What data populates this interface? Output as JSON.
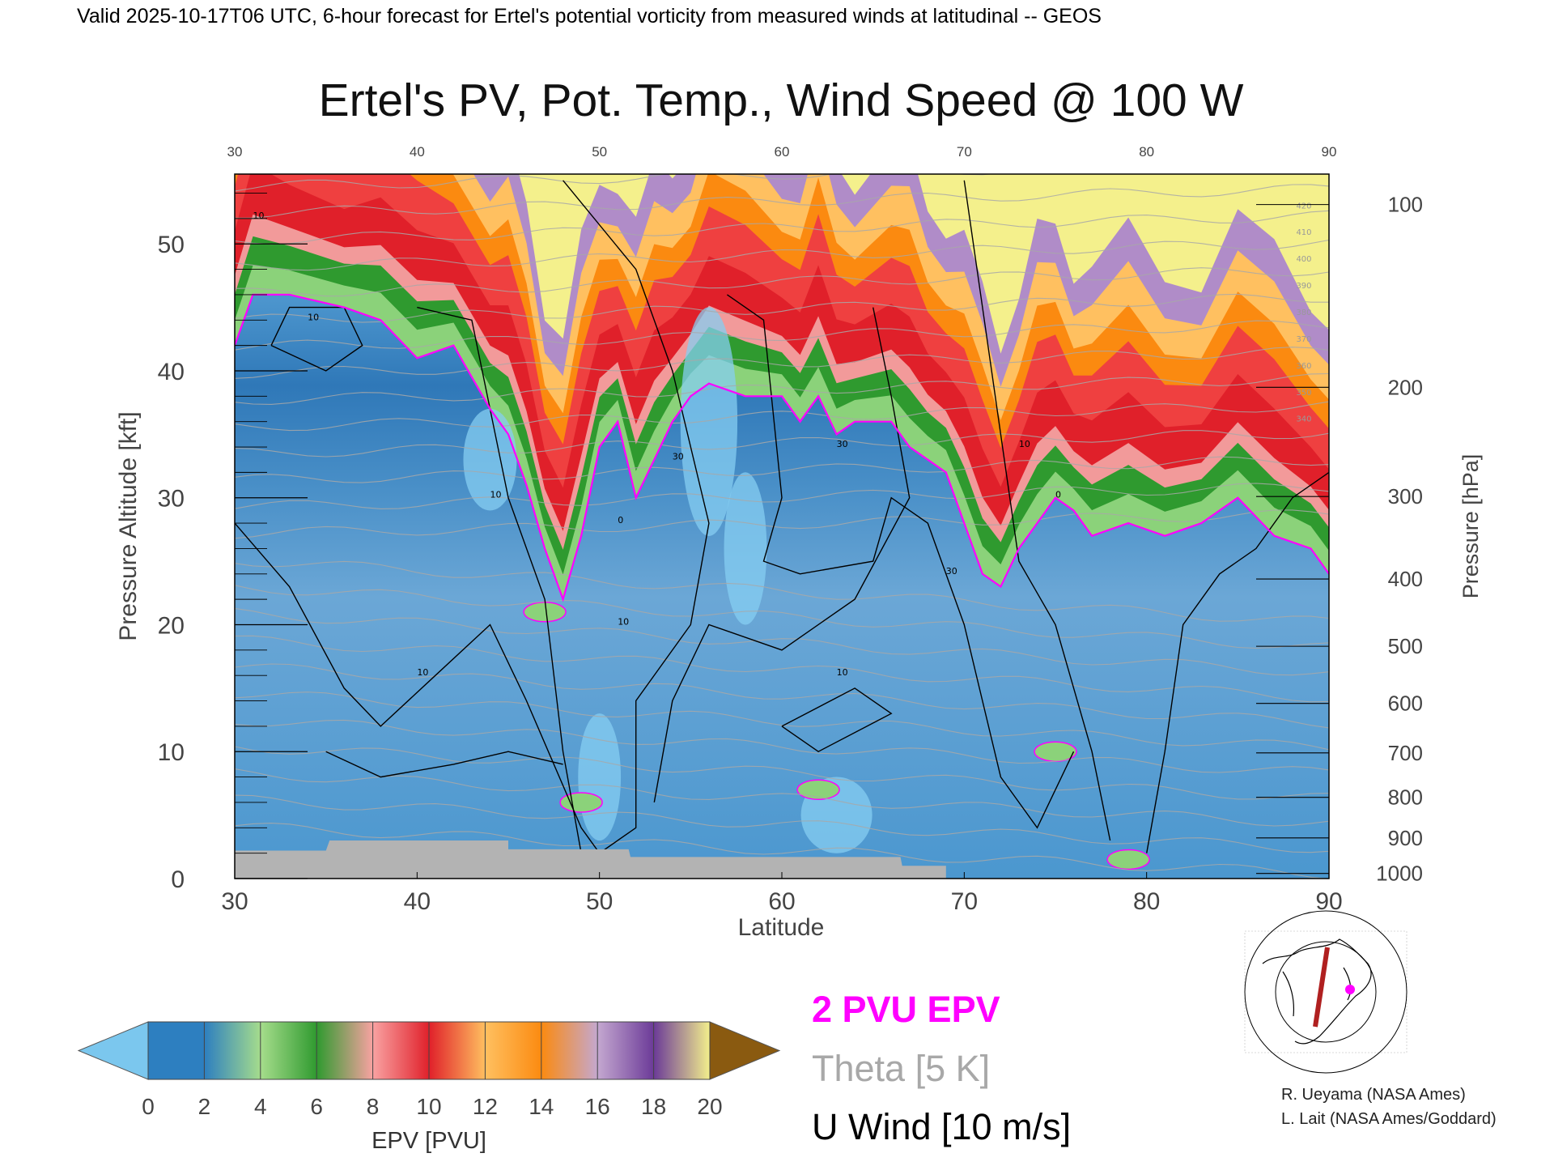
{
  "header": {
    "valid_text": "Valid 2025-10-17T06 UTC, 6-hour forecast for Ertel's potential vorticity from measured winds at latitudinal -- GEOS"
  },
  "chart_data": {
    "type": "heatmap",
    "title": "Ertel's PV, Pot. Temp., Wind Speed @ 100 W",
    "xlabel": "Latitude",
    "ylabel_left": "Pressure Altitude [kft]",
    "ylabel_right": "Pressure [hPa]",
    "xlim": [
      30,
      90
    ],
    "ylim": [
      0,
      55.5
    ],
    "x_ticks": [
      "30",
      "40",
      "50",
      "60",
      "70",
      "80",
      "90"
    ],
    "y_ticks_left": [
      "0",
      "10",
      "20",
      "30",
      "40",
      "50"
    ],
    "pressure_ticks": [
      {
        "hPa": "100",
        "kft": 53.1
      },
      {
        "hPa": "200",
        "kft": 38.7
      },
      {
        "hPa": "300",
        "kft": 30.1
      },
      {
        "hPa": "400",
        "kft": 23.6
      },
      {
        "hPa": "500",
        "kft": 18.3
      },
      {
        "hPa": "600",
        "kft": 13.8
      },
      {
        "hPa": "700",
        "kft": 9.9
      },
      {
        "hPa": "800",
        "kft": 6.4
      },
      {
        "hPa": "900",
        "kft": 3.2
      },
      {
        "hPa": "1000",
        "kft": 0.4
      }
    ],
    "pv_2pvu_tropopause": {
      "lat": [
        30,
        31,
        33,
        36,
        38,
        40,
        42,
        44,
        45,
        46,
        47,
        48,
        49,
        50,
        51,
        52,
        53,
        54,
        55,
        56,
        58,
        60,
        61,
        62,
        63,
        64,
        66,
        67,
        68,
        69,
        70,
        71,
        72,
        73,
        74,
        75,
        76,
        77,
        79,
        81,
        83,
        85,
        87,
        89,
        90
      ],
      "kft": [
        42,
        46,
        46,
        45,
        44,
        41,
        42,
        37,
        35,
        31,
        26,
        22,
        27,
        34,
        36,
        30,
        33,
        36,
        38,
        39,
        38,
        38,
        36,
        38,
        35,
        36,
        36,
        34,
        33,
        32,
        28,
        24,
        23,
        26,
        28,
        30,
        29,
        27,
        28,
        27,
        28,
        30,
        27,
        26,
        24
      ]
    },
    "theta_levels_K": [
      "340",
      "350",
      "360",
      "370",
      "380",
      "390",
      "400",
      "410",
      "420"
    ],
    "u_wind_contours_ms": [
      "0",
      "10",
      "30"
    ],
    "colorbar": {
      "label": "EPV [PVU]",
      "min": 0,
      "max": 20,
      "step": 2,
      "ticks": [
        "0",
        "2",
        "4",
        "6",
        "8",
        "10",
        "12",
        "14",
        "16",
        "18",
        "20"
      ],
      "colors": [
        "#7bc7ee",
        "#2d7fc0",
        "#a6dd8c",
        "#2f9a2f",
        "#f9a2a2",
        "#e0202a",
        "#ffc060",
        "#fb8a10",
        "#c4a8d0",
        "#6b3a98",
        "#f4f08c",
        "#8a5a10"
      ]
    },
    "legend": {
      "pv": "2 PVU EPV",
      "theta": "Theta [5 K]",
      "wind": "U Wind [10 m/s]",
      "pv_color": "#ff00ff",
      "theta_color": "#a8a8a8",
      "wind_color": "#000000"
    },
    "inset_marker_color": "#ff00ff",
    "inset_line_color": "#b02020"
  },
  "credits": {
    "line1": "R. Ueyama (NASA Ames)",
    "line2": "L. Lait (NASA Ames/Goddard)"
  }
}
